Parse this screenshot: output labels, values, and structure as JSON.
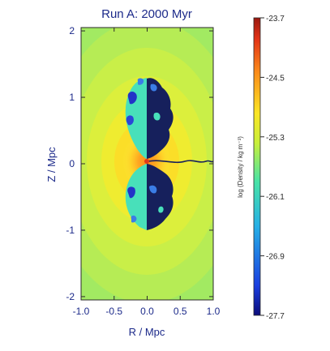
{
  "chart_data": [
    {
      "type": "heatmap",
      "title": "Run A:  2000 Myr",
      "xlabel": "R / Mpc",
      "ylabel": "Z / Mpc",
      "xlim": [
        -1.0,
        1.0
      ],
      "ylim": [
        -2.05,
        2.05
      ],
      "x_ticks": [
        "-1.0",
        "-0.5",
        "0.0",
        "0.5",
        "1.0"
      ],
      "x_tick_values": [
        -1.0,
        -0.5,
        0.0,
        0.5,
        1.0
      ],
      "y_ticks": [
        "2",
        "1",
        "0",
        "-1",
        "-2"
      ],
      "y_tick_values": [
        2,
        1,
        0,
        -1,
        -2
      ],
      "grid": false
    },
    {
      "type": "colorbar",
      "label": "log (Density / kg m⁻³)",
      "range": [
        -27.7,
        -23.7
      ],
      "ticks": [
        "-23.7",
        "-24.5",
        "-25.3",
        "-26.1",
        "-26.9",
        "-27.7"
      ],
      "tick_values": [
        -23.7,
        -24.5,
        -25.3,
        -26.1,
        -26.9,
        -27.7
      ],
      "colormap": [
        "#0c0c7a",
        "#1a3fe0",
        "#26b0e6",
        "#48e3a6",
        "#c9ef3a",
        "#fbe524",
        "#fb8a1a",
        "#e23216",
        "#9a1810"
      ]
    }
  ]
}
